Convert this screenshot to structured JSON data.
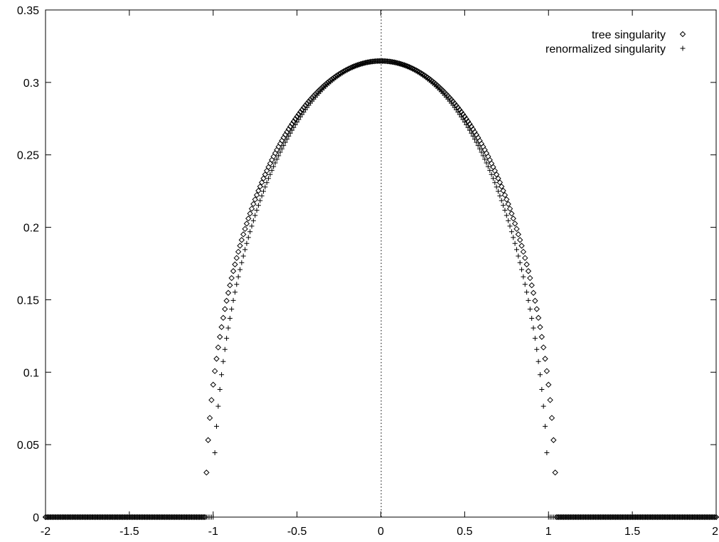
{
  "chart_data": {
    "type": "scatter",
    "xlim": [
      -2,
      2
    ],
    "ylim": [
      0,
      0.35
    ],
    "xticks": [
      "-2",
      "-1.5",
      "-1",
      "-0.5",
      "0",
      "0.5",
      "1",
      "1.5",
      "2"
    ],
    "yticks": [
      "0",
      "0.05",
      "0.1",
      "0.15",
      "0.2",
      "0.25",
      "0.3",
      "0.35"
    ],
    "grid": false,
    "legend_position": "top-right",
    "zero_line": "dotted vertical line at x = 0",
    "series": [
      {
        "name": "tree singularity",
        "marker": "diamond",
        "color": "#000000",
        "center": 0.3148,
        "radius": 1.045,
        "step": 0.01,
        "zero_tail": {
          "from": -2.0,
          "to": 2.0,
          "value": 0
        }
      },
      {
        "name": "renormalized singularity",
        "marker": "plus",
        "color": "#000000",
        "center": 0.3148,
        "radius": 1.0,
        "step": 0.01,
        "zero_tail": {
          "from": -2.0,
          "to": 2.0,
          "value": 0
        }
      }
    ]
  }
}
